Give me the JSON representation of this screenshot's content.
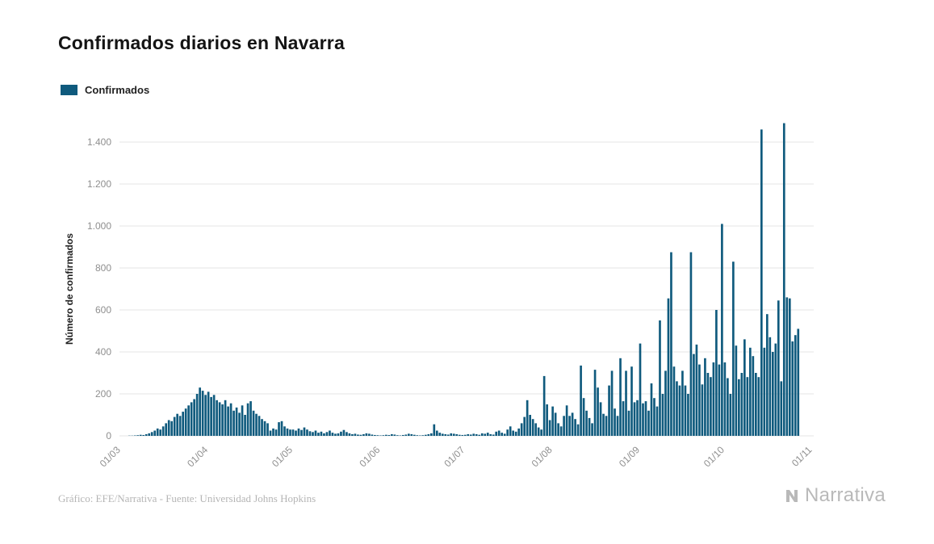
{
  "title": "Confirmados diarios en Navarra",
  "legend": {
    "label": "Confirmados"
  },
  "footer": {
    "credit": "Gráfico: EFE/Narrativa - Fuente: Universidad Johns Hopkins",
    "brand": "Narrativa"
  },
  "chart_data": {
    "type": "bar",
    "title": "Confirmados diarios en Navarra",
    "series_name": "Confirmados",
    "xlabel": "",
    "ylabel": "Número de confirmados",
    "ylim": [
      0,
      1400
    ],
    "grid": "horizontal",
    "legend_position": "top-left",
    "bar_color": "#0f5a7d",
    "grid_color": "#e6e6e6",
    "tick_color": "#8f8f8f",
    "ytick_values": [
      0,
      200,
      400,
      600,
      800,
      1000,
      1200,
      1400
    ],
    "ytick_labels": [
      "0",
      "200",
      "400",
      "600",
      "800",
      "1.000",
      "1.200",
      "1.400"
    ],
    "xtick_labels": [
      "01/03",
      "01/04",
      "01/05",
      "01/06",
      "01/07",
      "01/08",
      "01/09",
      "01/10",
      "01/11"
    ],
    "xtick_day_offsets": [
      0,
      31,
      61,
      92,
      122,
      153,
      184,
      214,
      245
    ],
    "values": [
      0,
      0,
      0,
      1,
      1,
      2,
      3,
      5,
      4,
      8,
      12,
      18,
      25,
      35,
      30,
      45,
      60,
      75,
      70,
      90,
      105,
      95,
      115,
      130,
      145,
      160,
      175,
      200,
      230,
      215,
      195,
      210,
      185,
      195,
      170,
      160,
      150,
      170,
      140,
      155,
      120,
      135,
      110,
      145,
      100,
      155,
      165,
      120,
      105,
      95,
      80,
      70,
      60,
      25,
      35,
      30,
      65,
      70,
      45,
      35,
      30,
      30,
      25,
      35,
      28,
      40,
      30,
      22,
      18,
      25,
      15,
      20,
      12,
      18,
      25,
      15,
      10,
      12,
      20,
      28,
      18,
      12,
      8,
      10,
      6,
      5,
      8,
      12,
      10,
      6,
      4,
      3,
      2,
      3,
      5,
      4,
      8,
      6,
      3,
      2,
      4,
      6,
      10,
      8,
      5,
      3,
      2,
      3,
      5,
      8,
      12,
      55,
      25,
      15,
      10,
      8,
      6,
      12,
      10,
      8,
      5,
      4,
      5,
      8,
      6,
      10,
      8,
      5,
      12,
      10,
      15,
      8,
      6,
      20,
      25,
      15,
      10,
      30,
      45,
      25,
      20,
      35,
      60,
      90,
      170,
      100,
      80,
      60,
      40,
      30,
      285,
      150,
      75,
      140,
      110,
      60,
      45,
      95,
      145,
      95,
      110,
      80,
      55,
      335,
      180,
      120,
      85,
      60,
      315,
      230,
      160,
      105,
      95,
      240,
      310,
      130,
      95,
      370,
      165,
      310,
      120,
      330,
      160,
      170,
      440,
      155,
      165,
      120,
      250,
      180,
      140,
      550,
      200,
      310,
      655,
      875,
      330,
      260,
      240,
      310,
      240,
      200,
      875,
      390,
      435,
      340,
      245,
      370,
      300,
      280,
      350,
      600,
      340,
      1010,
      350,
      275,
      200,
      830,
      430,
      270,
      300,
      460,
      280,
      420,
      380,
      300,
      280,
      1460,
      420,
      580,
      470,
      400,
      440,
      645,
      260,
      1490,
      660,
      655,
      450,
      480,
      510
    ]
  }
}
